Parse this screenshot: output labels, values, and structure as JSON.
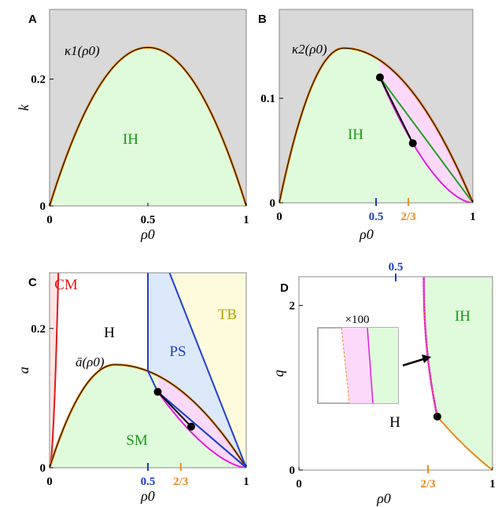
{
  "colors": {
    "grey_region": "#d9d9d9",
    "green_region": "#e0fbdb",
    "pink_region": "#fcd9fb",
    "blue_region": "#dce9fb",
    "yellow_region": "#fdfbdb",
    "red_region": "#fde6e4",
    "orange_curve": "#e98a1a",
    "magenta_curve": "#e020e0",
    "green_line": "#22a022",
    "blue_line": "#1f3fd0",
    "red_curve": "#e01818",
    "label_green": "#1a9a1a",
    "label_blue": "#1a3ad0",
    "label_red": "#e01818",
    "label_olive": "#b0a000",
    "label_orange": "#e98a1a"
  },
  "chart_data": [
    {
      "panel": "A",
      "type": "area",
      "xlabel": "ρ0",
      "ylabel": "k",
      "xlim": [
        0,
        1
      ],
      "ylim": [
        0,
        0.31
      ],
      "xticks": [
        {
          "value": 0,
          "label": "0"
        },
        {
          "value": 0.5,
          "label": "0.5"
        },
        {
          "value": 1,
          "label": "1"
        }
      ],
      "yticks": [
        {
          "value": 0,
          "label": "0"
        },
        {
          "value": 0.2,
          "label": "0.2"
        }
      ],
      "curve": {
        "name": "κ1(ρ0)",
        "label": "κ1(ρ0)",
        "form": "c*x*(1-x)",
        "c": 1.0,
        "peak": 0.25
      },
      "regions": [
        {
          "name": "IH",
          "label": "IH",
          "below_curve": true
        }
      ]
    },
    {
      "panel": "B",
      "type": "area",
      "xlabel": "ρ0",
      "ylabel": "",
      "xlim": [
        0,
        1
      ],
      "ylim": [
        0,
        0.185
      ],
      "xticks": [
        {
          "value": 0,
          "label": "0"
        },
        {
          "value": 0.5,
          "label": "0.5",
          "color": "blue"
        },
        {
          "value": 0.667,
          "label": "2/3",
          "color": "orange"
        },
        {
          "value": 1,
          "label": "1"
        }
      ],
      "yticks": [
        {
          "value": 0,
          "label": "0"
        },
        {
          "value": 0.1,
          "label": "0.1"
        }
      ],
      "curve": {
        "name": "κ2(ρ0)",
        "label": "κ2(ρ0)",
        "peak_x": 0.333,
        "peak_y": 0.148
      },
      "points": [
        {
          "x": 0.52,
          "y": 0.12
        },
        {
          "x": 0.69,
          "y": 0.057
        }
      ],
      "regions": [
        {
          "name": "IH",
          "label": "IH"
        }
      ]
    },
    {
      "panel": "C",
      "type": "area",
      "xlabel": "ρ0",
      "ylabel": "a",
      "xlim": [
        0,
        1
      ],
      "ylim": [
        0,
        0.28
      ],
      "xticks": [
        {
          "value": 0,
          "label": "0"
        },
        {
          "value": 0.5,
          "label": "0.5",
          "color": "blue"
        },
        {
          "value": 0.667,
          "label": "2/3",
          "color": "orange"
        },
        {
          "value": 1,
          "label": "1"
        }
      ],
      "yticks": [
        {
          "value": 0,
          "label": "0"
        },
        {
          "value": 0.2,
          "label": "0.2"
        }
      ],
      "curve": {
        "name": "ā(ρ0)",
        "label": "ā(ρ0)",
        "peak_x": 0.333,
        "peak_y": 0.148
      },
      "points": [
        {
          "x": 0.55,
          "y": 0.109
        },
        {
          "x": 0.72,
          "y": 0.059
        }
      ],
      "regions": [
        {
          "name": "CM",
          "label": "CM"
        },
        {
          "name": "H",
          "label": "H"
        },
        {
          "name": "PS",
          "label": "PS"
        },
        {
          "name": "TB",
          "label": "TB"
        },
        {
          "name": "SM",
          "label": "SM"
        }
      ]
    },
    {
      "panel": "D",
      "type": "area",
      "xlabel": "ρ0",
      "ylabel": "q",
      "xlim": [
        0,
        1
      ],
      "ylim": [
        0,
        2.35
      ],
      "xticks": [
        {
          "value": 0,
          "label": "0"
        },
        {
          "value": 0.667,
          "label": "2/3",
          "color": "orange"
        },
        {
          "value": 1,
          "label": "1"
        }
      ],
      "top_ticks": [
        {
          "value": 0.5,
          "label": "0.5",
          "color": "blue"
        }
      ],
      "yticks": [
        {
          "value": 0,
          "label": "0"
        },
        {
          "value": 2,
          "label": "2"
        }
      ],
      "points": [
        {
          "x": 0.715,
          "y": 0.65
        }
      ],
      "regions": [
        {
          "name": "IH",
          "label": "IH"
        },
        {
          "name": "H",
          "label": "H"
        }
      ],
      "inset": {
        "label": "×100"
      }
    }
  ],
  "panels": {
    "a": {
      "letter": "A"
    },
    "b": {
      "letter": "B"
    },
    "c": {
      "letter": "C"
    },
    "d": {
      "letter": "D"
    }
  }
}
